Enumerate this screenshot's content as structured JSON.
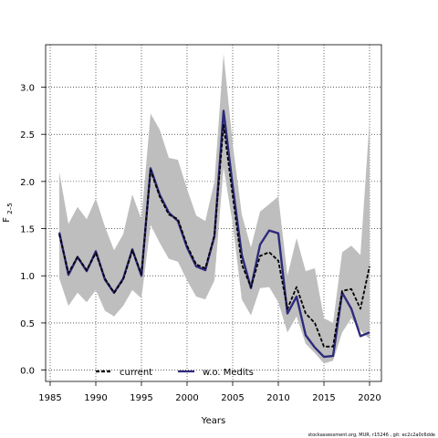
{
  "chart_data": {
    "type": "line",
    "xlabel": "Years",
    "ylabel_main": "F",
    "ylabel_sub": "2–5",
    "xlim": [
      1984.5,
      2021.3
    ],
    "ylim": [
      -0.12,
      3.45
    ],
    "x_ticks": [
      1985,
      1990,
      1995,
      2000,
      2005,
      2010,
      2015,
      2020
    ],
    "y_ticks": [
      0.0,
      0.5,
      1.0,
      1.5,
      2.0,
      2.5,
      3.0
    ],
    "y_tick_labels": [
      "0.0",
      "0.5",
      "1.0",
      "1.5",
      "2.0",
      "2.5",
      "3.0"
    ],
    "grid": true,
    "legend_placement": "bottom",
    "footnote": "stockassessment.org, MUR, r15246 , git: ec2c2a0c6dde",
    "x": [
      1986,
      1987,
      1988,
      1989,
      1990,
      1991,
      1992,
      1993,
      1994,
      1995,
      1996,
      1997,
      1998,
      1999,
      2000,
      2001,
      2002,
      2003,
      2004,
      2005,
      2006,
      2007,
      2008,
      2009,
      2010,
      2011,
      2012,
      2013,
      2014,
      2015,
      2016,
      2017,
      2018,
      2019,
      2020
    ],
    "band": {
      "color": "#bebebe",
      "upper": [
        2.1,
        1.55,
        1.73,
        1.6,
        1.82,
        1.52,
        1.27,
        1.44,
        1.86,
        1.6,
        2.72,
        2.55,
        2.25,
        2.23,
        1.92,
        1.64,
        1.58,
        2.0,
        3.35,
        2.4,
        1.65,
        1.3,
        1.68,
        1.76,
        1.84,
        1.0,
        1.4,
        1.05,
        1.08,
        0.55,
        0.5,
        1.25,
        1.32,
        1.22,
        2.65
      ],
      "lower": [
        0.97,
        0.68,
        0.82,
        0.72,
        0.85,
        0.63,
        0.57,
        0.68,
        0.85,
        0.76,
        1.54,
        1.35,
        1.18,
        1.15,
        0.95,
        0.78,
        0.75,
        0.95,
        2.15,
        1.55,
        0.75,
        0.58,
        0.87,
        0.88,
        0.72,
        0.4,
        0.57,
        0.28,
        0.18,
        0.07,
        0.1,
        0.4,
        0.55,
        0.42,
        0.33
      ]
    },
    "series": [
      {
        "name": "current",
        "color": "#000000",
        "style": "dashed",
        "values": [
          1.44,
          1.03,
          1.2,
          1.06,
          1.24,
          0.97,
          0.82,
          0.96,
          1.27,
          1.02,
          2.12,
          1.84,
          1.65,
          1.6,
          1.32,
          1.12,
          1.08,
          1.43,
          2.6,
          1.85,
          1.12,
          0.88,
          1.21,
          1.25,
          1.16,
          0.65,
          0.88,
          0.6,
          0.5,
          0.25,
          0.25,
          0.84,
          0.86,
          0.65,
          1.1
        ]
      },
      {
        "name": "w.o. Medits",
        "color": "#2e2a7c",
        "style": "solid",
        "values": [
          1.46,
          1.01,
          1.2,
          1.05,
          1.26,
          0.96,
          0.82,
          0.97,
          1.28,
          1.0,
          2.14,
          1.86,
          1.67,
          1.58,
          1.3,
          1.1,
          1.06,
          1.42,
          2.75,
          1.95,
          1.22,
          0.87,
          1.33,
          1.48,
          1.45,
          0.6,
          0.78,
          0.37,
          0.24,
          0.14,
          0.15,
          0.82,
          0.65,
          0.36,
          0.4
        ]
      }
    ]
  }
}
